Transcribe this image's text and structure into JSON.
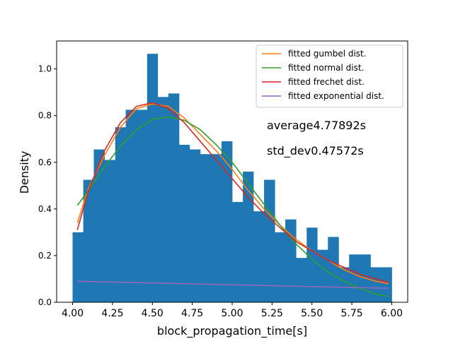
{
  "chart_data": {
    "type": "bar",
    "xlabel": "block_propagation_time[s]",
    "ylabel": "Density",
    "xlim": [
      3.9,
      6.1
    ],
    "ylim": [
      0,
      1.12
    ],
    "x_ticks": [
      "4.00",
      "4.25",
      "4.50",
      "4.75",
      "5.00",
      "5.25",
      "5.50",
      "5.75",
      "6.00"
    ],
    "y_ticks": [
      "0.0",
      "0.2",
      "0.4",
      "0.6",
      "0.8",
      "1.0"
    ],
    "histogram": {
      "bin_edges": [
        4.0,
        4.067,
        4.133,
        4.2,
        4.267,
        4.333,
        4.4,
        4.467,
        4.533,
        4.6,
        4.667,
        4.733,
        4.8,
        4.867,
        4.933,
        5.0,
        5.067,
        5.133,
        5.2,
        5.267,
        5.333,
        5.4,
        5.467,
        5.533,
        5.6,
        5.667,
        5.733,
        5.8,
        5.867,
        5.933,
        6.0
      ],
      "values": [
        0.3,
        0.525,
        0.655,
        0.61,
        0.75,
        0.825,
        0.825,
        1.065,
        0.88,
        0.895,
        0.675,
        0.655,
        0.635,
        0.635,
        0.69,
        0.43,
        0.56,
        0.39,
        0.525,
        0.3,
        0.355,
        0.19,
        0.32,
        0.225,
        0.28,
        0.15,
        0.205,
        0.205,
        0.15,
        0.15
      ],
      "color": "#1f77b4"
    },
    "series": [
      {
        "name": "fitted gumbel dist.",
        "color": "#ff7f0e",
        "x": [
          4.03,
          4.1,
          4.2,
          4.3,
          4.4,
          4.5,
          4.6,
          4.7,
          4.8,
          4.9,
          5.0,
          5.1,
          5.2,
          5.3,
          5.4,
          5.5,
          5.6,
          5.7,
          5.8,
          5.9,
          5.98
        ],
        "y": [
          0.34,
          0.49,
          0.63,
          0.75,
          0.83,
          0.85,
          0.84,
          0.79,
          0.72,
          0.65,
          0.57,
          0.48,
          0.4,
          0.33,
          0.27,
          0.22,
          0.18,
          0.14,
          0.11,
          0.09,
          0.08
        ]
      },
      {
        "name": "fitted normal dist.",
        "color": "#2ca02c",
        "x": [
          4.03,
          4.1,
          4.2,
          4.3,
          4.4,
          4.5,
          4.6,
          4.7,
          4.8,
          4.9,
          5.0,
          5.1,
          5.2,
          5.3,
          5.4,
          5.5,
          5.6,
          5.7,
          5.8,
          5.9,
          5.98
        ],
        "y": [
          0.415,
          0.48,
          0.58,
          0.67,
          0.74,
          0.785,
          0.795,
          0.78,
          0.74,
          0.675,
          0.6,
          0.51,
          0.42,
          0.33,
          0.25,
          0.185,
          0.13,
          0.09,
          0.06,
          0.035,
          0.025
        ]
      },
      {
        "name": "fitted frechet dist.",
        "color": "#d62728",
        "x": [
          4.03,
          4.1,
          4.2,
          4.3,
          4.4,
          4.5,
          4.6,
          4.7,
          4.8,
          4.9,
          5.0,
          5.1,
          5.2,
          5.3,
          5.4,
          5.5,
          5.6,
          5.7,
          5.8,
          5.9,
          5.98
        ],
        "y": [
          0.31,
          0.48,
          0.65,
          0.77,
          0.84,
          0.855,
          0.83,
          0.77,
          0.69,
          0.61,
          0.53,
          0.45,
          0.38,
          0.32,
          0.26,
          0.22,
          0.18,
          0.15,
          0.12,
          0.1,
          0.085
        ]
      },
      {
        "name": "fitted exponential dist.",
        "color": "#9467bd",
        "x": [
          4.03,
          5.98
        ],
        "y": [
          0.09,
          0.06
        ]
      }
    ],
    "legend_position": "top-right",
    "annotations": [
      {
        "id": "average",
        "text": "average4.77892s"
      },
      {
        "id": "std_dev",
        "text": "std_dev0.47572s"
      }
    ]
  }
}
